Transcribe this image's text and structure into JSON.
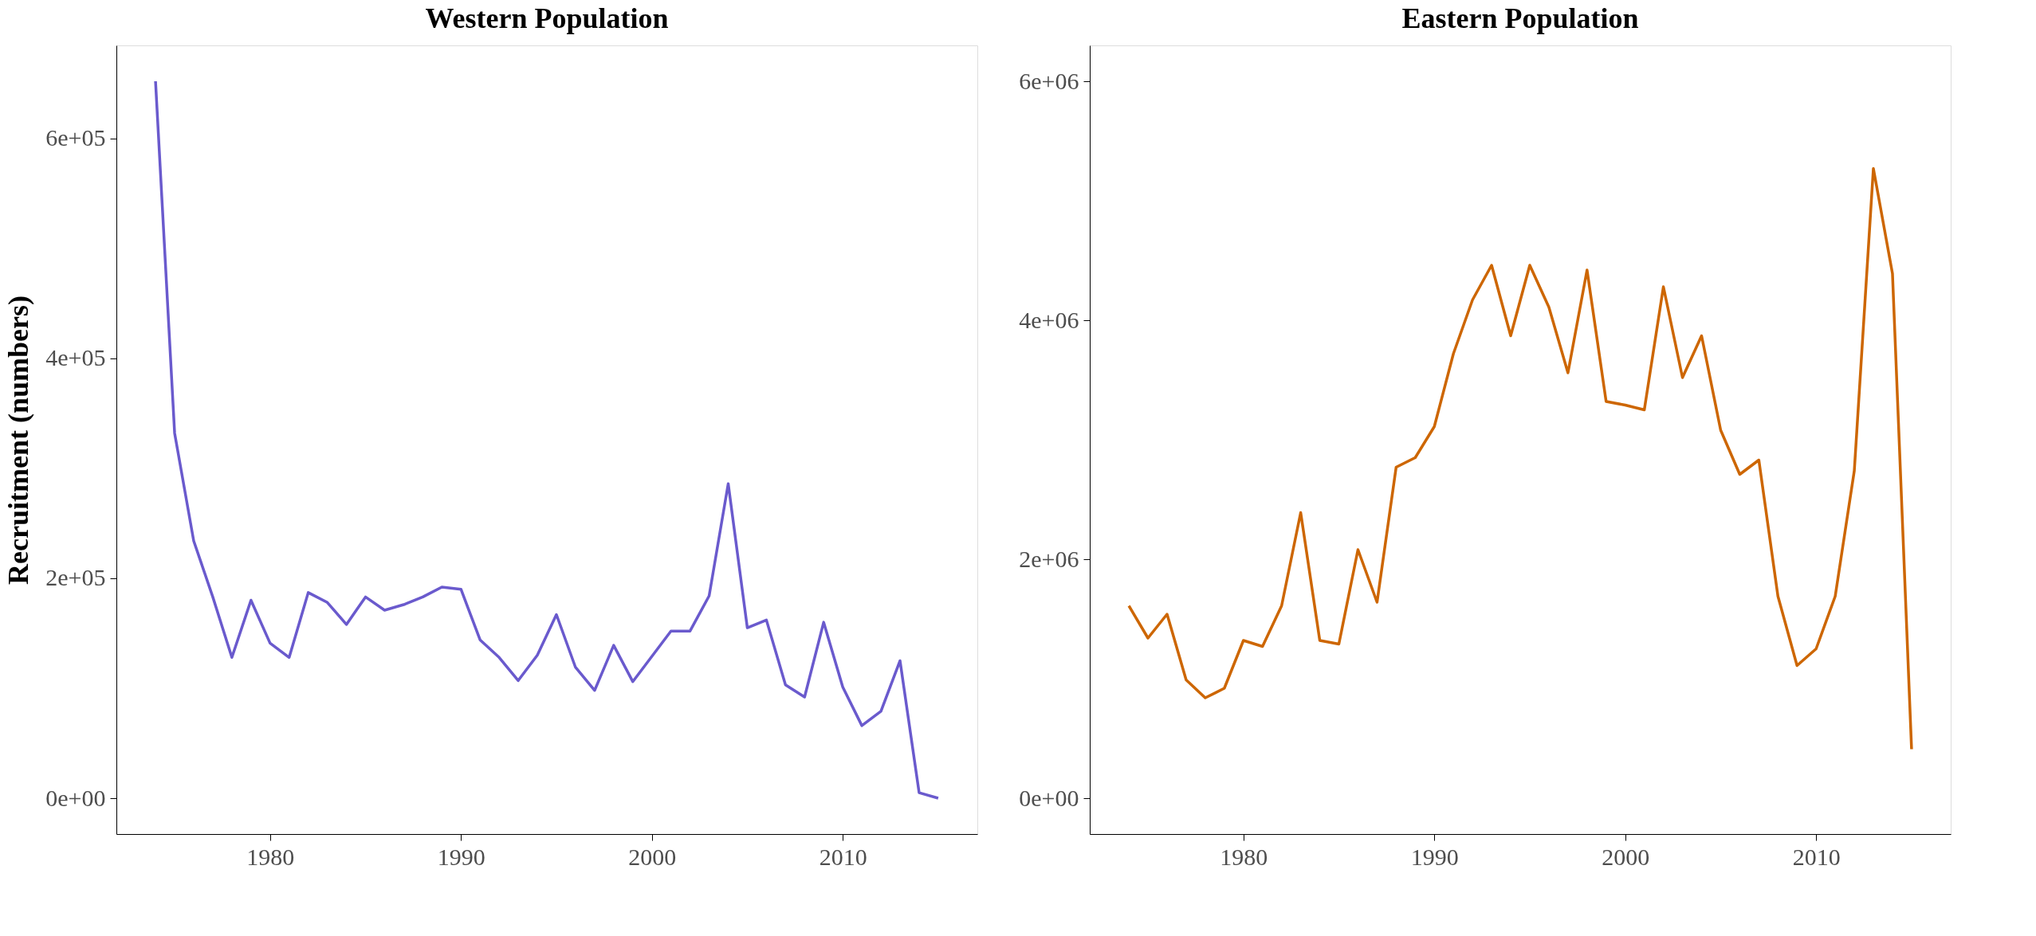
{
  "chart_data": [
    {
      "type": "line",
      "title": "Western Population",
      "ylabel": "Recruitment (numbers)",
      "x": [
        1974,
        1975,
        1976,
        1977,
        1978,
        1979,
        1980,
        1981,
        1982,
        1983,
        1984,
        1985,
        1986,
        1987,
        1988,
        1989,
        1990,
        1991,
        1992,
        1993,
        1994,
        1995,
        1996,
        1997,
        1998,
        1999,
        2000,
        2001,
        2002,
        2003,
        2004,
        2005,
        2006,
        2007,
        2008,
        2009,
        2010,
        2011,
        2012,
        2013,
        2014,
        2015
      ],
      "series": [
        {
          "color": "#6a5acd",
          "values": [
            652000,
            332000,
            234000,
            183000,
            128000,
            180000,
            141000,
            128000,
            187000,
            178000,
            158000,
            183000,
            171000,
            176000,
            183000,
            192000,
            190000,
            144000,
            128000,
            107000,
            130000,
            167000,
            119000,
            98000,
            139000,
            106000,
            129000,
            152000,
            152000,
            184000,
            286000,
            155000,
            162000,
            103000,
            92000,
            160000,
            101000,
            66000,
            79000,
            125000,
            5000,
            0
          ]
        }
      ],
      "xlim": [
        1971.95,
        2017.05
      ],
      "xticks": [
        1980,
        1990,
        2000,
        2010
      ],
      "ylim": [
        -32600,
        684600
      ],
      "yticks": [
        {
          "value": 0,
          "label": "0e+00"
        },
        {
          "value": 200000,
          "label": "2e+05"
        },
        {
          "value": 400000,
          "label": "4e+05"
        },
        {
          "value": 600000,
          "label": "6e+05"
        }
      ],
      "grid": false
    },
    {
      "type": "line",
      "title": "Eastern Population",
      "x": [
        1974,
        1975,
        1976,
        1977,
        1978,
        1979,
        1980,
        1981,
        1982,
        1983,
        1984,
        1985,
        1986,
        1987,
        1988,
        1989,
        1990,
        1991,
        1992,
        1993,
        1994,
        1995,
        1996,
        1997,
        1998,
        1999,
        2000,
        2001,
        2002,
        2003,
        2004,
        2005,
        2006,
        2007,
        2008,
        2009,
        2010,
        2011,
        2012,
        2013,
        2014,
        2015
      ],
      "series": [
        {
          "color": "#cd6600",
          "values": [
            1610000,
            1340000,
            1540000,
            990000,
            840000,
            920000,
            1320000,
            1270000,
            1610000,
            2390000,
            1320000,
            1290000,
            2080000,
            1640000,
            2770000,
            2850000,
            3110000,
            3720000,
            4170000,
            4460000,
            3870000,
            4460000,
            4110000,
            3560000,
            4420000,
            3320000,
            3290000,
            3250000,
            4280000,
            3520000,
            3870000,
            3080000,
            2710000,
            2830000,
            1690000,
            1110000,
            1250000,
            1690000,
            2740000,
            5270000,
            4390000,
            410000
          ]
        }
      ],
      "xlim": [
        1971.95,
        2017.05
      ],
      "xticks": [
        1980,
        1990,
        2000,
        2010
      ],
      "ylim": [
        -300000,
        6300000
      ],
      "yticks": [
        {
          "value": 0,
          "label": "0e+00"
        },
        {
          "value": 2000000,
          "label": "2e+06"
        },
        {
          "value": 4000000,
          "label": "4e+06"
        },
        {
          "value": 6000000,
          "label": "6e+06"
        }
      ],
      "grid": false
    }
  ]
}
